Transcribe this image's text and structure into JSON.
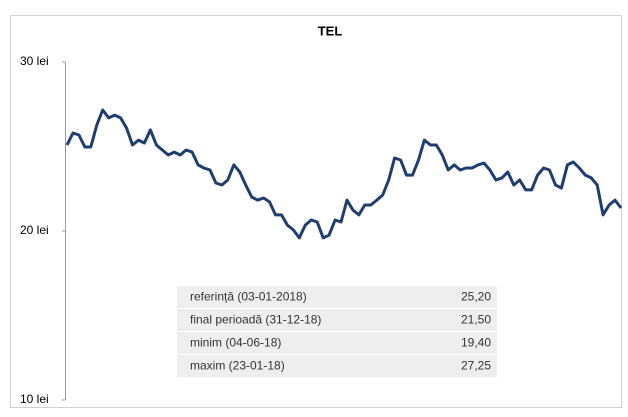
{
  "chart_data": {
    "type": "line",
    "title": "TEL",
    "series": [
      {
        "name": "TEL",
        "color": "#1f3d6e",
        "values": [
          25.09,
          25.8,
          25.68,
          24.97,
          24.97,
          26.27,
          27.16,
          26.69,
          26.86,
          26.69,
          26.09,
          25.09,
          25.38,
          25.21,
          25.98,
          25.09,
          24.79,
          24.5,
          24.67,
          24.5,
          24.79,
          24.67,
          23.91,
          23.73,
          23.61,
          22.84,
          22.72,
          23.02,
          23.91,
          23.49,
          22.72,
          22.01,
          21.83,
          21.95,
          21.72,
          20.95,
          20.95,
          20.35,
          20.06,
          19.59,
          20.35,
          20.65,
          20.53,
          19.59,
          19.76,
          20.65,
          20.53,
          21.83,
          21.24,
          20.95,
          21.54,
          21.54,
          21.83,
          22.13,
          23.02,
          24.32,
          24.2,
          23.31,
          23.31,
          24.2,
          25.38,
          25.09,
          25.09,
          24.5,
          23.61,
          23.91,
          23.61,
          23.73,
          23.73,
          23.91,
          24.02,
          23.61,
          23.02,
          23.14,
          23.49,
          22.72,
          23.02,
          22.43,
          22.43,
          23.31,
          23.73,
          23.61,
          22.72,
          22.54,
          23.91,
          24.08,
          23.73,
          23.31,
          23.14,
          22.72,
          20.95,
          21.54,
          21.83,
          21.36
        ]
      }
    ],
    "ylim": [
      10,
      30
    ],
    "yticks": [
      {
        "value": 10,
        "label": "10 lei"
      },
      {
        "value": 20,
        "label": "20 lei"
      },
      {
        "value": 30,
        "label": "30 lei"
      }
    ],
    "grid": false,
    "table": {
      "rows": [
        [
          "referință (03-01-2018)",
          "25,20"
        ],
        [
          "final perioadă (31-12-18)",
          "21,50"
        ],
        [
          "minim (04-06-18)",
          "19,40"
        ],
        [
          "maxim (23-01-18)",
          "27,25"
        ]
      ]
    }
  }
}
